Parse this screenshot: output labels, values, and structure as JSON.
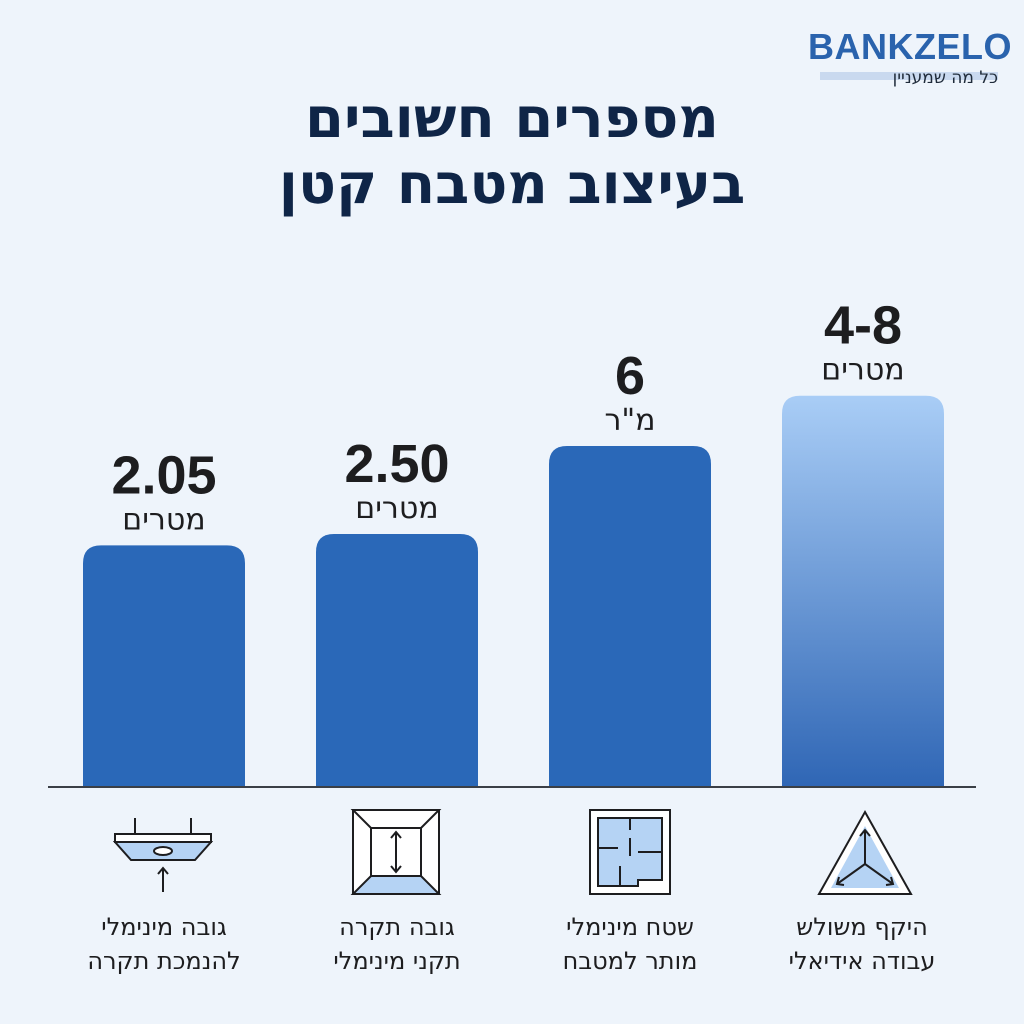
{
  "brand": {
    "name": "BANKZELO",
    "tagline": "כל מה שמעניין"
  },
  "title_lines": [
    "מספרים חשובים",
    "בעיצוב מטבח קטן"
  ],
  "colors": {
    "bar": "#2a68b8",
    "bar_gradient_top": "#a9cdf6",
    "bar_gradient_bottom": "#2f66b5",
    "title": "#0f2547",
    "brand": "#2a63ad"
  },
  "chart_data": {
    "type": "bar",
    "title": "מספרים חשובים בעיצוב מטבח קטן",
    "xlabel": "",
    "ylabel": "",
    "bars": [
      {
        "value": 2.05,
        "label": "2.05",
        "unit": "מטרים",
        "category": "גובה מינימלי להנמכת תקרה",
        "icon": "lowered-ceiling-icon",
        "gradient": false
      },
      {
        "value": 2.5,
        "label": "2.50",
        "unit": "מטרים",
        "category": "גובה תקרה תקני מינימלי",
        "icon": "room-height-icon",
        "gradient": false
      },
      {
        "value": 6,
        "label": "6",
        "unit": "מ\"ר",
        "category": "שטח מינימלי מותר למטבח",
        "icon": "floor-plan-icon",
        "gradient": false
      },
      {
        "value": 8,
        "label": "4-8",
        "unit": "מטרים",
        "category": "היקף משולש עבודה אידיאלי",
        "icon": "work-triangle-icon",
        "gradient": true,
        "range": [
          4,
          8
        ]
      }
    ]
  },
  "descriptions": [
    [
      "גובה מינימלי",
      "להנמכת תקרה"
    ],
    [
      "גובה תקרה",
      "תקני מינימלי"
    ],
    [
      "שטח מינימלי",
      "מותר למטבח"
    ],
    [
      "היקף משולש",
      "עבודה אידיאלי"
    ]
  ]
}
